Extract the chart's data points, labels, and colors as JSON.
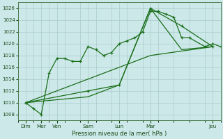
{
  "background_color": "#cce8e8",
  "grid_color": "#aacccc",
  "line_color": "#1a6e1a",
  "title": "Pression niveau de la mer( hPa )",
  "ylim": [
    1007,
    1027
  ],
  "yticks": [
    1008,
    1010,
    1012,
    1014,
    1016,
    1018,
    1020,
    1022,
    1024,
    1026
  ],
  "xlim": [
    0,
    13
  ],
  "xtick_positions": [
    0.5,
    1.5,
    2.5,
    4.5,
    6.5,
    8.5,
    12.5
  ],
  "xtick_labels": [
    "Dim",
    "Mer",
    "Ven",
    "Sam",
    "Lun",
    "Mar",
    "Jeu"
  ],
  "line1_x": [
    0.5,
    1.0,
    1.5,
    2.0,
    2.5,
    3.0,
    3.5,
    4.0,
    4.5,
    5.0,
    5.5,
    6.0,
    6.5,
    7.0,
    7.5,
    8.0,
    8.5,
    9.0,
    9.5,
    10.0,
    10.5,
    11.0,
    12.0,
    12.5,
    13.0
  ],
  "line1_y": [
    1010,
    1009,
    1008,
    1015,
    1017.5,
    1017.5,
    1017,
    1017,
    1019.5,
    1019,
    1018,
    1018.5,
    1020,
    1020.5,
    1021,
    1022,
    1025.5,
    1025.5,
    1025,
    1024.5,
    1021,
    1021,
    1019.5,
    1020,
    1019.5
  ],
  "line2_x": [
    0.5,
    4.5,
    6.5,
    8.5,
    10.5,
    12.5
  ],
  "line2_y": [
    1010,
    1012,
    1013,
    1026,
    1023,
    1019.5
  ],
  "line3_x": [
    0.5,
    4.5,
    6.5,
    8.5,
    10.5,
    12.5
  ],
  "line3_y": [
    1010,
    1011,
    1013,
    1026,
    1019,
    1019.5
  ],
  "line4_x": [
    0.5,
    8.5,
    12.5
  ],
  "line4_y": [
    1010,
    1018,
    1019.5
  ],
  "minor_xtick_count": 13
}
